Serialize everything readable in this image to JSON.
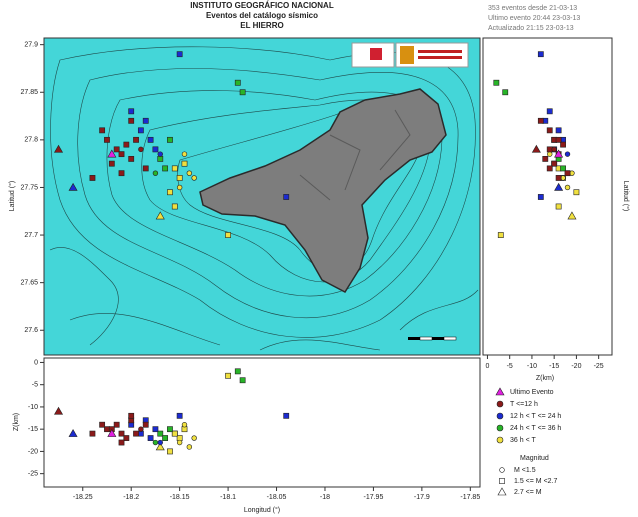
{
  "chart_data": {
    "type": "scatter",
    "title": [
      "INSTITUTO GEOGRÁFICO NACIONAL",
      "Eventos del catálogo sísmico",
      "EL HIERRO"
    ],
    "subtitle": [
      "353 eventos desde 21-03-13",
      "Ultimo evento 20:44 23-03-13",
      "Actualizado   21:15  23-03-13"
    ],
    "xlabel": "Longitud (°)",
    "ylabel": "Latitud (°)",
    "zlabel": "Z(km)",
    "xlim": [
      -18.29,
      -17.84
    ],
    "xticks": [
      -18.25,
      -18.2,
      -18.15,
      -18.1,
      -18.05,
      -18,
      -17.95,
      -17.9,
      -17.85
    ],
    "ylim": [
      27.574,
      27.907
    ],
    "yticks": [
      27.6,
      27.65,
      27.7,
      27.75,
      27.8,
      27.85,
      27.9
    ],
    "zlim": [
      1,
      -28
    ],
    "zticks": [
      0,
      -5,
      -10,
      -15,
      -20,
      -25
    ],
    "series": [
      {
        "name": "Ultimo Evento",
        "color": "#e020e0",
        "x": [
          -18.22
        ],
        "values": [
          27.785
        ],
        "depth": [
          -16
        ],
        "markers": [
          "triangle"
        ]
      },
      {
        "name": "T <=12 h",
        "color": "#8b1a1a",
        "x": [
          -18.225,
          -18.215,
          -18.21,
          -18.205,
          -18.22,
          -18.2,
          -18.195,
          -18.23,
          -18.21,
          -18.19,
          -18.2,
          -18.275,
          -18.24,
          -18.185
        ],
        "values": [
          27.8,
          27.79,
          27.785,
          27.795,
          27.775,
          27.78,
          27.8,
          27.81,
          27.765,
          27.79,
          27.82,
          27.79,
          27.76,
          27.77
        ],
        "depth": [
          -15,
          -14,
          -16,
          -17,
          -15,
          -13,
          -16,
          -14,
          -18,
          -15,
          -12,
          -11,
          -16,
          -14
        ],
        "markers": [
          "square",
          "square",
          "square",
          "square",
          "square",
          "square",
          "square",
          "square",
          "square",
          "circle",
          "square",
          "triangle",
          "square",
          "square"
        ]
      },
      {
        "name": "12 h  < T <= 24 h",
        "color": "#1c2bd0",
        "x": [
          -18.19,
          -18.18,
          -18.175,
          -18.2,
          -18.17,
          -18.185,
          -18.26,
          -18.15,
          -18.04
        ],
        "values": [
          27.81,
          27.8,
          27.79,
          27.83,
          27.785,
          27.82,
          27.75,
          27.89,
          27.74
        ],
        "depth": [
          -16,
          -17,
          -15,
          -14,
          -18,
          -13,
          -16,
          -12,
          -12
        ],
        "markers": [
          "square",
          "square",
          "square",
          "square",
          "circle",
          "square",
          "triangle",
          "square",
          "square"
        ]
      },
      {
        "name": "24 h  < T <= 36 h",
        "color": "#28b428",
        "x": [
          -18.17,
          -18.165,
          -18.16,
          -18.175,
          -18.09,
          -18.085
        ],
        "values": [
          27.78,
          27.77,
          27.8,
          27.765,
          27.86,
          27.85
        ],
        "depth": [
          -16,
          -17,
          -15,
          -18,
          -2,
          -4
        ],
        "markers": [
          "square",
          "square",
          "square",
          "circle",
          "square",
          "square"
        ]
      },
      {
        "name": "36 h  < T",
        "color": "#f0e040",
        "x": [
          -18.155,
          -18.15,
          -18.145,
          -18.15,
          -18.14,
          -18.16,
          -18.145,
          -18.135,
          -18.155,
          -18.1,
          -18.17
        ],
        "values": [
          27.77,
          27.76,
          27.775,
          27.75,
          27.765,
          27.745,
          27.785,
          27.76,
          27.73,
          27.7,
          27.72
        ],
        "depth": [
          -16,
          -17,
          -15,
          -18,
          -19,
          -20,
          -14,
          -17,
          -16,
          -3,
          -19
        ],
        "markers": [
          "square",
          "square",
          "square",
          "circle",
          "circle",
          "square",
          "circle",
          "circle",
          "square",
          "square",
          "triangle"
        ]
      }
    ],
    "magnitude": {
      "title": "Magnitud",
      "items": [
        {
          "label": "M <1.5",
          "marker": "circle"
        },
        {
          "label": "1.5 <= M <2.7",
          "marker": "square"
        },
        {
          "label": "2.7 <= M",
          "marker": "triangle"
        }
      ]
    }
  }
}
